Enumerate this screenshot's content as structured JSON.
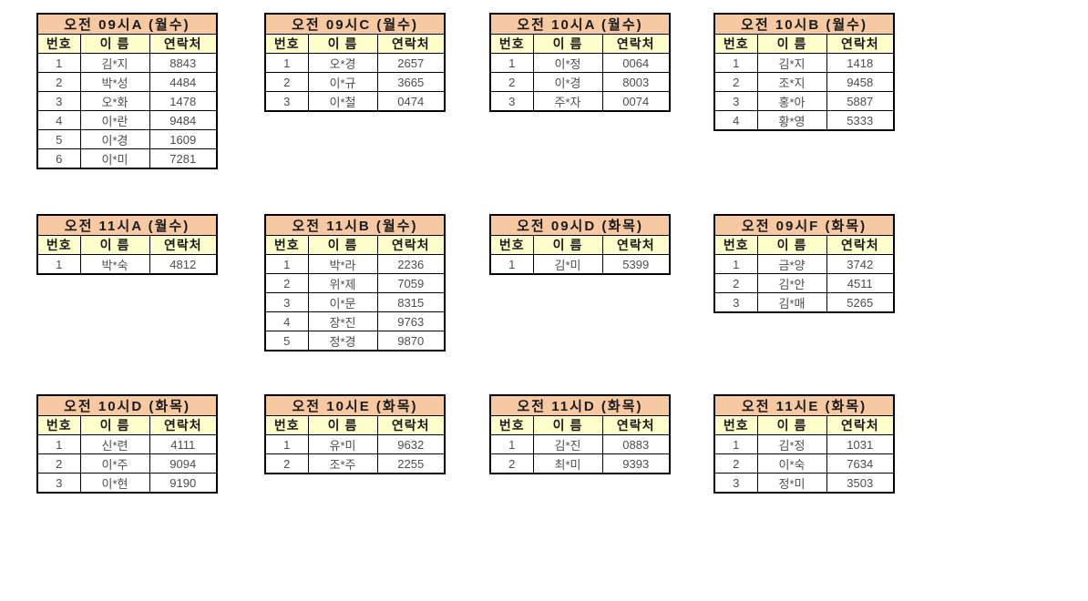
{
  "styles": {
    "title_bg": "#f6c9a3",
    "header_bg": "#ffffcc",
    "border_color": "#000000",
    "data_text_color": "#4d4d4d"
  },
  "columns": [
    "번호",
    "이 름",
    "연락처"
  ],
  "tables": [
    {
      "title": "오전 09시A (월수)",
      "grid": {
        "col": 0,
        "row": 0
      },
      "rows": [
        [
          "1",
          "김*지",
          "8843"
        ],
        [
          "2",
          "박*성",
          "4484"
        ],
        [
          "3",
          "오*화",
          "1478"
        ],
        [
          "4",
          "이*란",
          "9484"
        ],
        [
          "5",
          "이*경",
          "1609"
        ],
        [
          "6",
          "이*미",
          "7281"
        ]
      ]
    },
    {
      "title": "오전 09시C (월수)",
      "grid": {
        "col": 1,
        "row": 0
      },
      "rows": [
        [
          "1",
          "오*경",
          "2657"
        ],
        [
          "2",
          "이*규",
          "3665"
        ],
        [
          "3",
          "이*철",
          "0474"
        ]
      ]
    },
    {
      "title": "오전 10시A (월수)",
      "grid": {
        "col": 2,
        "row": 0
      },
      "rows": [
        [
          "1",
          "이*정",
          "0064"
        ],
        [
          "2",
          "이*경",
          "8003"
        ],
        [
          "3",
          "주*자",
          "0074"
        ]
      ]
    },
    {
      "title": "오전 10시B (월수)",
      "grid": {
        "col": 3,
        "row": 0
      },
      "rows": [
        [
          "1",
          "김*지",
          "1418"
        ],
        [
          "2",
          "조*지",
          "9458"
        ],
        [
          "3",
          "홍*아",
          "5887"
        ],
        [
          "4",
          "황*영",
          "5333"
        ]
      ]
    },
    {
      "title": "오전 11시A (월수)",
      "grid": {
        "col": 0,
        "row": 1
      },
      "rows": [
        [
          "1",
          "박*숙",
          "4812"
        ]
      ]
    },
    {
      "title": "오전 11시B (월수)",
      "grid": {
        "col": 1,
        "row": 1
      },
      "rows": [
        [
          "1",
          "박*라",
          "2236"
        ],
        [
          "2",
          "위*제",
          "7059"
        ],
        [
          "3",
          "이*문",
          "8315"
        ],
        [
          "4",
          "장*진",
          "9763"
        ],
        [
          "5",
          "정*경",
          "9870"
        ]
      ]
    },
    {
      "title": "오전 09시D (화목)",
      "grid": {
        "col": 2,
        "row": 1
      },
      "rows": [
        [
          "1",
          "김*미",
          "5399"
        ]
      ]
    },
    {
      "title": "오전 09시F (화목)",
      "grid": {
        "col": 3,
        "row": 1
      },
      "rows": [
        [
          "1",
          "금*양",
          "3742"
        ],
        [
          "2",
          "김*안",
          "4511"
        ],
        [
          "3",
          "김*매",
          "5265"
        ]
      ]
    },
    {
      "title": "오전 10시D (화목)",
      "grid": {
        "col": 0,
        "row": 2
      },
      "rows": [
        [
          "1",
          "신*련",
          "4111"
        ],
        [
          "2",
          "이*주",
          "9094"
        ],
        [
          "3",
          "이*현",
          "9190"
        ]
      ]
    },
    {
      "title": "오전 10시E (화목)",
      "grid": {
        "col": 1,
        "row": 2
      },
      "rows": [
        [
          "1",
          "유*미",
          "9632"
        ],
        [
          "2",
          "조*주",
          "2255"
        ]
      ]
    },
    {
      "title": "오전 11시D (화목)",
      "grid": {
        "col": 2,
        "row": 2
      },
      "rows": [
        [
          "1",
          "김*진",
          "0883"
        ],
        [
          "2",
          "최*미",
          "9393"
        ]
      ]
    },
    {
      "title": "오전 11시E (화목)",
      "grid": {
        "col": 3,
        "row": 2
      },
      "rows": [
        [
          "1",
          "김*정",
          "1031"
        ],
        [
          "2",
          "이*숙",
          "7634"
        ],
        [
          "3",
          "정*미",
          "3503"
        ]
      ]
    }
  ]
}
